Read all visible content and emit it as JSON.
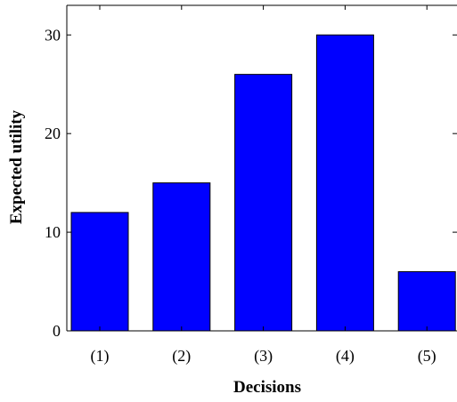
{
  "chart_data": {
    "type": "bar",
    "categories": [
      "(1)",
      "(2)",
      "(3)",
      "(4)",
      "(5)"
    ],
    "values": [
      12,
      15,
      26,
      30,
      6
    ],
    "title": "",
    "xlabel": "Decisions",
    "ylabel": "Expected utility",
    "ylim": [
      0,
      33
    ],
    "yticks": [
      0,
      10,
      20,
      30
    ],
    "grid": false,
    "legend": "none",
    "colors": {
      "bar_fill": "#0000ff",
      "bar_stroke": "#000000",
      "axis": "#000000"
    }
  }
}
